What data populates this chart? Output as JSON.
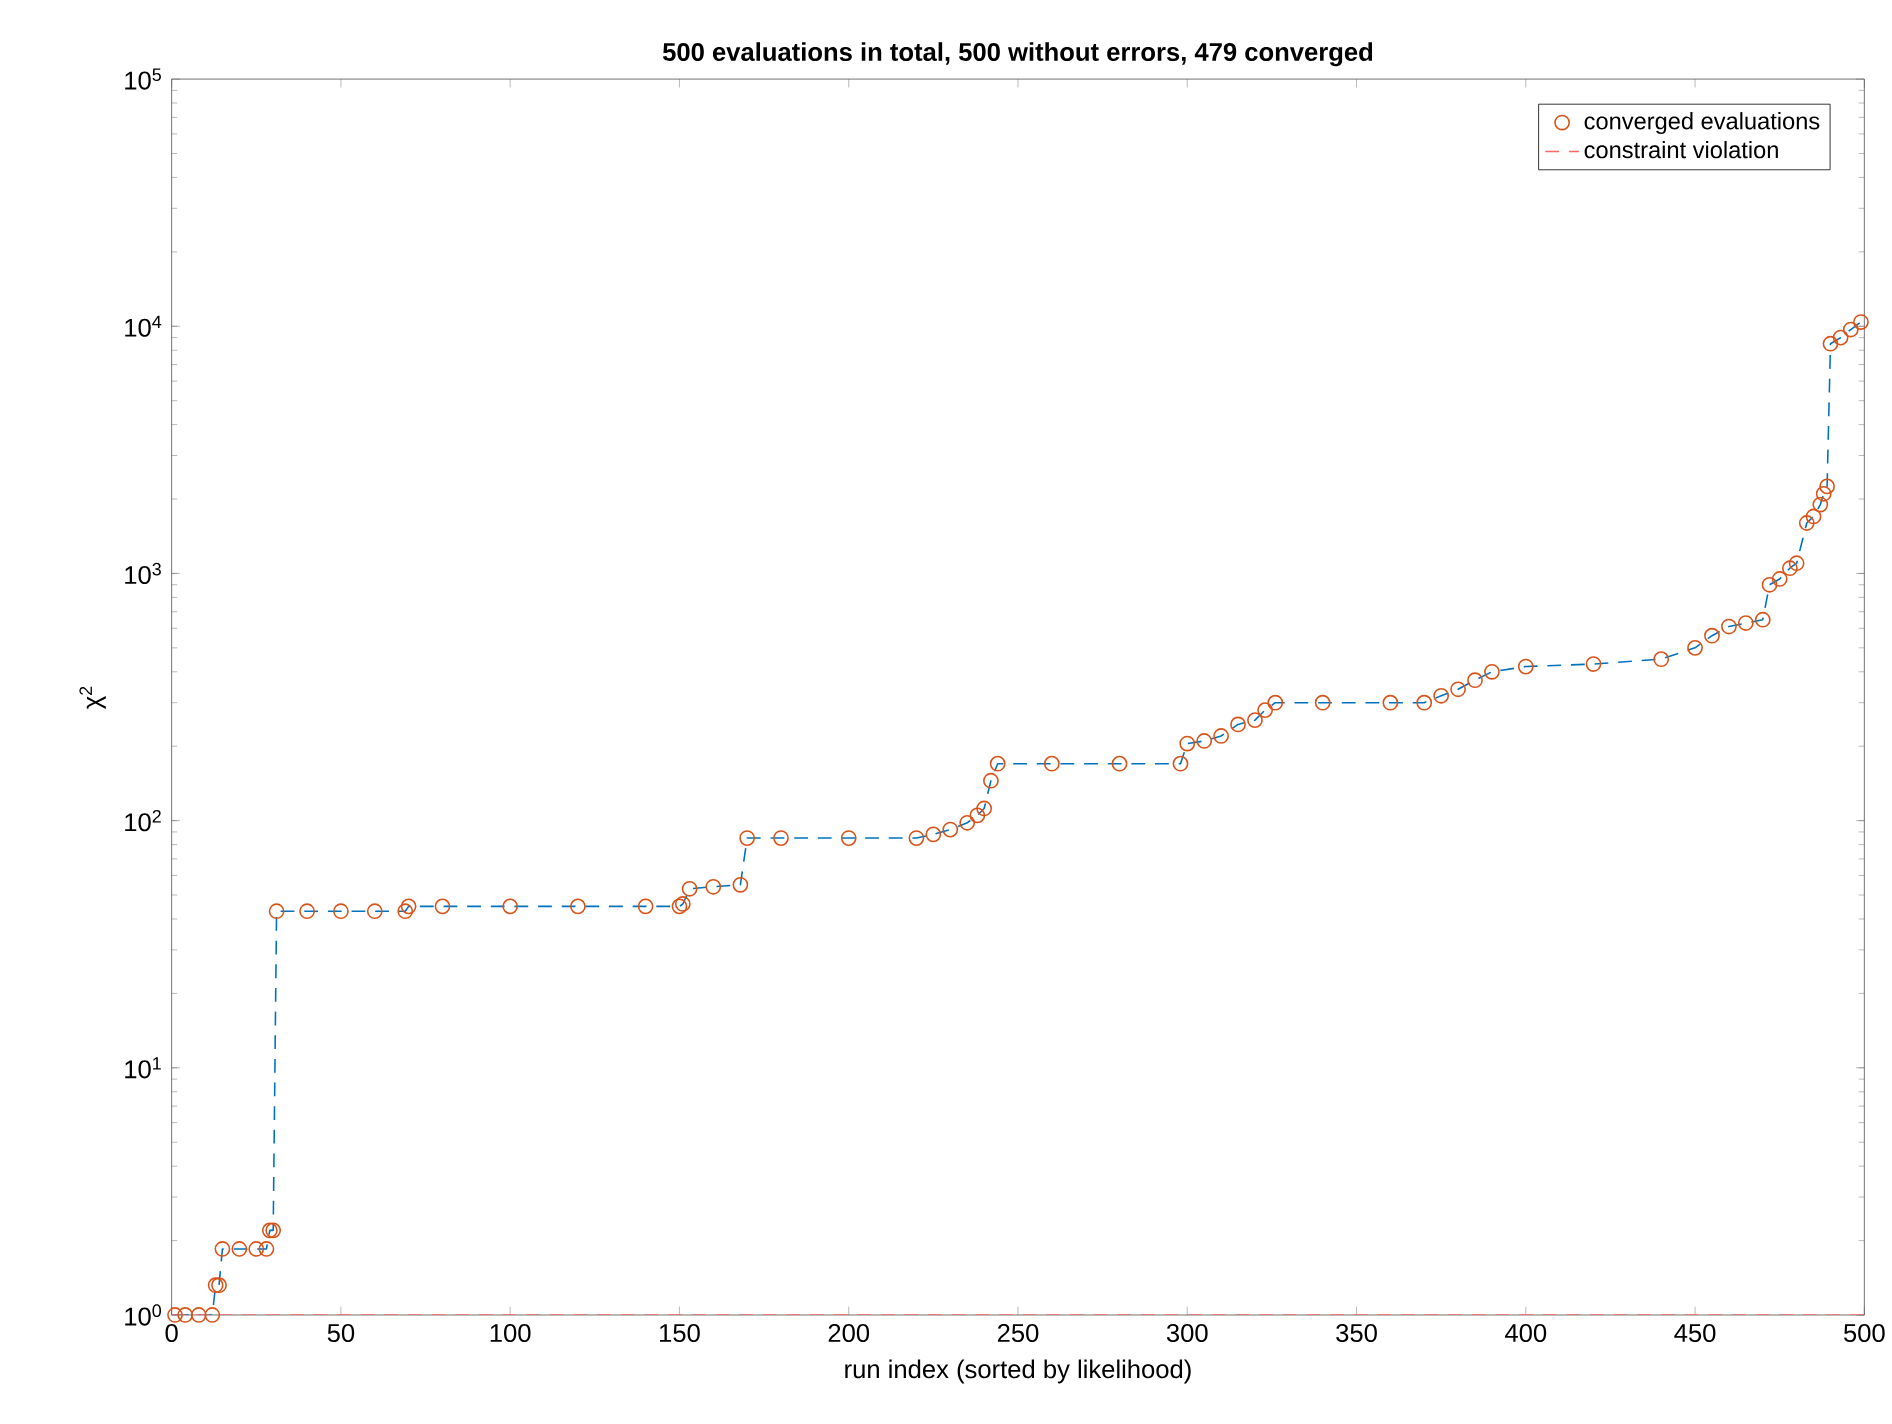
{
  "chart_data": {
    "type": "scatter",
    "title": "**500 evaluations in total, 500 without errors, 479 converged**",
    "xlabel": "run index (sorted by likelihood)",
    "ylabel": "χ$^{2}$",
    "log": "y",
    "xlim": [
      0,
      500
    ],
    "ylim": [
      1,
      100000
    ],
    "xticks": [
      0,
      50,
      100,
      150,
      200,
      250,
      300,
      350,
      400,
      450,
      500
    ],
    "yticks": [
      {
        "value": 1,
        "label": "10$^{0}$"
      },
      {
        "value": 10,
        "label": "10$^{1}$"
      },
      {
        "value": 100,
        "label": "10$^{2}$"
      },
      {
        "value": 1000,
        "label": "10$^{3}$"
      },
      {
        "value": 10000,
        "label": "10$^{4}$"
      },
      {
        "value": 100000,
        "label": "10$^{5}$"
      }
    ],
    "legend": "top right",
    "series": [
      {
        "type": "line",
        "color": "#0072bd",
        "line_style": "dashed",
        "marker": "none",
        "x": [
          1,
          4,
          8,
          12,
          13,
          14,
          15,
          20,
          25,
          28,
          29,
          30,
          31,
          40,
          50,
          60,
          69,
          70,
          80,
          100,
          120,
          140,
          150,
          151,
          153,
          160,
          168,
          170,
          180,
          200,
          220,
          225,
          230,
          235,
          238,
          240,
          242,
          244,
          260,
          280,
          298,
          300,
          305,
          310,
          315,
          320,
          323,
          326,
          340,
          360,
          370,
          375,
          380,
          385,
          390,
          400,
          420,
          440,
          450,
          455,
          460,
          465,
          470,
          472,
          475,
          478,
          480,
          483,
          485,
          487,
          488,
          489,
          490,
          493,
          496,
          499
        ],
        "values": [
          1,
          1,
          1,
          1,
          1.32,
          1.32,
          1.85,
          1.85,
          1.85,
          1.85,
          2.2,
          2.2,
          43,
          43,
          43,
          43,
          43,
          45,
          45,
          45,
          45,
          45,
          45,
          46,
          53,
          54,
          55,
          85,
          85,
          85,
          85,
          88,
          92,
          98,
          105,
          112,
          145,
          170,
          170,
          170,
          170,
          205,
          210,
          220,
          245,
          255,
          280,
          300,
          300,
          300,
          300,
          320,
          340,
          370,
          400,
          420,
          430,
          450,
          500,
          560,
          610,
          630,
          650,
          900,
          950,
          1050,
          1100,
          1600,
          1700,
          1900,
          2100,
          2250,
          8500,
          9000,
          9700,
          10400
        ]
      },
      {
        "name": "converged evaluations",
        "color": "#d95319",
        "marker": "circle",
        "x": [
          1,
          4,
          8,
          12,
          13,
          14,
          15,
          20,
          25,
          28,
          29,
          30,
          31,
          40,
          50,
          60,
          69,
          70,
          80,
          100,
          120,
          140,
          150,
          151,
          153,
          160,
          168,
          170,
          180,
          200,
          220,
          225,
          230,
          235,
          238,
          240,
          242,
          244,
          260,
          280,
          298,
          300,
          305,
          310,
          315,
          320,
          323,
          326,
          340,
          360,
          370,
          375,
          380,
          385,
          390,
          400,
          420,
          440,
          450,
          455,
          460,
          465,
          470,
          472,
          475,
          478,
          480,
          483,
          485,
          487,
          488,
          489,
          490,
          493,
          496,
          499
        ],
        "values": [
          1,
          1,
          1,
          1,
          1.32,
          1.32,
          1.85,
          1.85,
          1.85,
          1.85,
          2.2,
          2.2,
          43,
          43,
          43,
          43,
          43,
          45,
          45,
          45,
          45,
          45,
          45,
          46,
          53,
          54,
          55,
          85,
          85,
          85,
          85,
          88,
          92,
          98,
          105,
          112,
          145,
          170,
          170,
          170,
          170,
          205,
          210,
          220,
          245,
          255,
          280,
          300,
          300,
          300,
          300,
          320,
          340,
          370,
          400,
          420,
          430,
          450,
          500,
          560,
          610,
          630,
          650,
          900,
          950,
          1050,
          1100,
          1600,
          1700,
          1900,
          2100,
          2250,
          8500,
          9000,
          9700,
          10400
        ]
      }
    ],
    "ref_lines": [
      {
        "axis": "y",
        "value": 1,
        "label": "constraint violation",
        "color": "#ff6666",
        "line_style": "dashed"
      }
    ]
  }
}
